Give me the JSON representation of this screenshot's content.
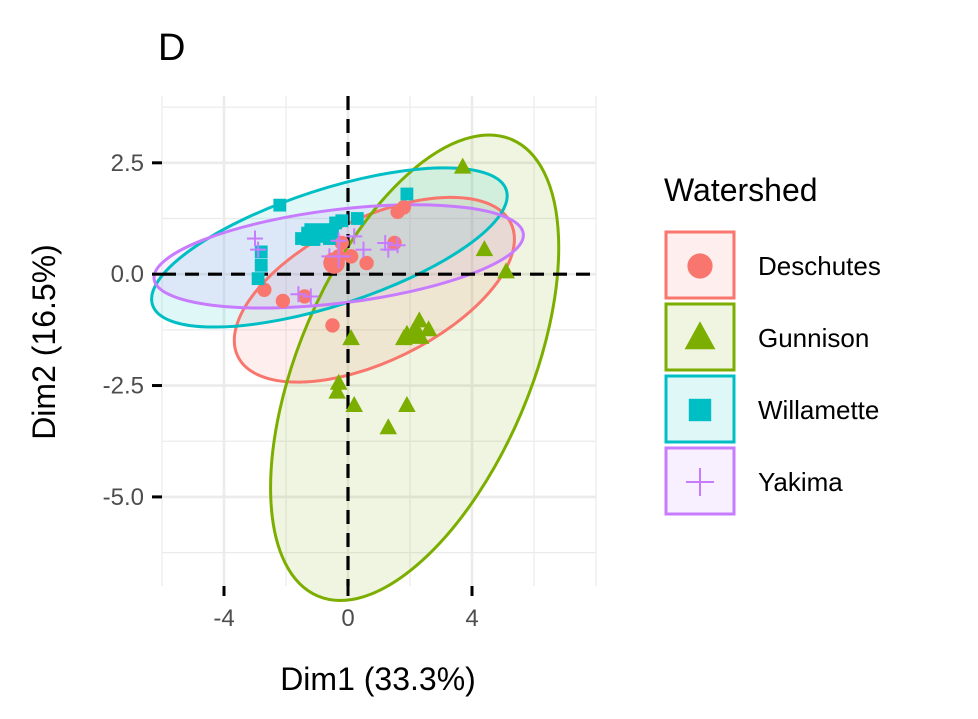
{
  "chart_data": {
    "type": "scatter",
    "title": "D",
    "xlabel": "Dim1 (33.3%)",
    "ylabel": "Dim2 (16.5%)",
    "xlim": [
      -6,
      8
    ],
    "ylim": [
      -7.0,
      4.0
    ],
    "x_ticks": [
      -4,
      0,
      4
    ],
    "y_ticks": [
      2.5,
      0.0,
      -2.5,
      -5.0
    ],
    "x_tick_labels": [
      "-4",
      "0",
      "4"
    ],
    "y_tick_labels": [
      "2.5",
      "0.0",
      "-2.5",
      "-5.0"
    ],
    "grid": true,
    "reference_lines": {
      "x": 0,
      "y": 0,
      "style": "dashed"
    },
    "legend": {
      "title": "Watershed",
      "position": "right"
    },
    "series": [
      {
        "name": "Deschutes",
        "color": "#F8766D",
        "shape": "circle",
        "points": [
          [
            1.8,
            1.5
          ],
          [
            1.6,
            1.4
          ],
          [
            1.5,
            0.7
          ],
          [
            -0.4,
            0.25
          ],
          [
            -0.5,
            0.2
          ],
          [
            -0.3,
            0.4
          ],
          [
            -0.2,
            0.7
          ],
          [
            0.1,
            0.4
          ],
          [
            0.6,
            0.25
          ],
          [
            -1.4,
            -0.5
          ],
          [
            -2.1,
            -0.6
          ],
          [
            -2.7,
            -0.35
          ],
          [
            -0.5,
            -1.15
          ]
        ],
        "mean": [
          -0.45,
          0.25
        ],
        "ellipse": {
          "cx": 0.85,
          "cy": -0.35,
          "rx": 4.9,
          "ry": 1.6,
          "angle": 26
        }
      },
      {
        "name": "Gunnison",
        "color": "#7CAE00",
        "shape": "triangle",
        "points": [
          [
            3.7,
            2.4
          ],
          [
            4.4,
            0.55
          ],
          [
            5.1,
            0.05
          ],
          [
            2.3,
            -1.05
          ],
          [
            2.6,
            -1.25
          ],
          [
            2.1,
            -1.3
          ],
          [
            1.8,
            -1.45
          ],
          [
            1.9,
            -1.35
          ],
          [
            0.1,
            -1.45
          ],
          [
            -0.3,
            -2.45
          ],
          [
            -0.35,
            -2.65
          ],
          [
            0.2,
            -2.95
          ],
          [
            1.9,
            -2.95
          ],
          [
            1.3,
            -3.45
          ]
        ],
        "mean": [
          2.2,
          -1.35
        ],
        "ellipse": {
          "cx": 2.15,
          "cy": -2.1,
          "rx": 8.0,
          "ry": 2.6,
          "angle": 67
        }
      },
      {
        "name": "Willamette",
        "color": "#00BFC4",
        "shape": "square",
        "points": [
          [
            -2.2,
            1.55
          ],
          [
            -1.2,
            1.0
          ],
          [
            -0.9,
            0.85
          ],
          [
            -0.8,
            1.0
          ],
          [
            -0.6,
            0.8
          ],
          [
            -0.4,
            1.15
          ],
          [
            -0.2,
            1.2
          ],
          [
            0.3,
            1.25
          ],
          [
            -0.5,
            0.95
          ],
          [
            -1.5,
            0.8
          ],
          [
            -2.8,
            0.5
          ],
          [
            -2.8,
            0.2
          ],
          [
            -2.9,
            -0.1
          ],
          [
            1.9,
            1.8
          ]
        ],
        "mean": [
          -1.2,
          0.85
        ],
        "ellipse": {
          "cx": -0.6,
          "cy": 0.6,
          "rx": 6.0,
          "ry": 1.3,
          "angle": 18
        }
      },
      {
        "name": "Yakima",
        "color": "#C77CFF",
        "shape": "plus",
        "points": [
          [
            -3.0,
            0.8
          ],
          [
            -2.9,
            0.55
          ],
          [
            -1.2,
            -0.5
          ],
          [
            -1.6,
            -0.45
          ],
          [
            -0.3,
            0.75
          ],
          [
            0.2,
            0.85
          ],
          [
            0.5,
            0.55
          ],
          [
            1.3,
            0.55
          ],
          [
            1.6,
            0.65
          ],
          [
            1.2,
            0.7
          ],
          [
            -0.6,
            0.4
          ]
        ],
        "mean": [
          -0.3,
          0.4
        ],
        "ellipse": {
          "cx": -0.3,
          "cy": 0.4,
          "rx": 6.0,
          "ry": 1.05,
          "angle": 7
        }
      }
    ]
  }
}
